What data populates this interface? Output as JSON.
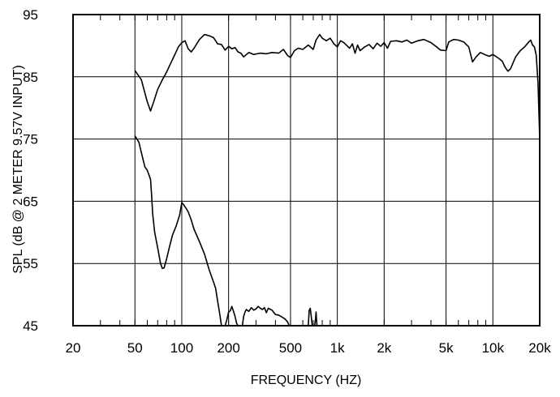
{
  "chart_data": {
    "type": "line",
    "xlabel": "FREQUENCY  (HZ)",
    "ylabel": "SPL (dB @ 2 METER 9.57V  INPUT)",
    "x_scale": "log",
    "xlim": [
      20,
      20000
    ],
    "ylim": [
      45,
      95
    ],
    "grid": true,
    "x_ticks": [
      {
        "value": 20,
        "label": "20"
      },
      {
        "value": 50,
        "label": "50"
      },
      {
        "value": 100,
        "label": "100"
      },
      {
        "value": 200,
        "label": "200"
      },
      {
        "value": 500,
        "label": "500"
      },
      {
        "value": 1000,
        "label": "1k"
      },
      {
        "value": 2000,
        "label": "2k"
      },
      {
        "value": 5000,
        "label": "5k"
      },
      {
        "value": 10000,
        "label": "10k"
      },
      {
        "value": 20000,
        "label": "20k"
      }
    ],
    "y_ticks": [
      {
        "value": 45,
        "label": "45"
      },
      {
        "value": 55,
        "label": "55"
      },
      {
        "value": 65,
        "label": "65"
      },
      {
        "value": 75,
        "label": "75"
      },
      {
        "value": 85,
        "label": "85"
      },
      {
        "value": 95,
        "label": "95"
      }
    ],
    "series": [
      {
        "points": [
          [
            50,
            86
          ],
          [
            55,
            84.5
          ],
          [
            60,
            81
          ],
          [
            63,
            79.5
          ],
          [
            66,
            81
          ],
          [
            70,
            83
          ],
          [
            75,
            84.5
          ],
          [
            80,
            85.8
          ],
          [
            85,
            87.2
          ],
          [
            90,
            88.5
          ],
          [
            95,
            89.8
          ],
          [
            100,
            90.5
          ],
          [
            105,
            90.8
          ],
          [
            110,
            89.5
          ],
          [
            115,
            89
          ],
          [
            120,
            89.6
          ],
          [
            130,
            91
          ],
          [
            140,
            91.8
          ],
          [
            150,
            91.6
          ],
          [
            160,
            91.3
          ],
          [
            170,
            90.3
          ],
          [
            180,
            90.2
          ],
          [
            190,
            89.3
          ],
          [
            200,
            89.9
          ],
          [
            210,
            89.5
          ],
          [
            220,
            89.7
          ],
          [
            230,
            89
          ],
          [
            240,
            88.8
          ],
          [
            250,
            88.2
          ],
          [
            270,
            88.9
          ],
          [
            290,
            88.6
          ],
          [
            320,
            88.8
          ],
          [
            350,
            88.7
          ],
          [
            380,
            88.9
          ],
          [
            420,
            88.8
          ],
          [
            450,
            89.4
          ],
          [
            480,
            88.4
          ],
          [
            500,
            88.1
          ],
          [
            530,
            89.2
          ],
          [
            560,
            89.6
          ],
          [
            600,
            89.4
          ],
          [
            650,
            90.1
          ],
          [
            700,
            89.4
          ],
          [
            730,
            90.9
          ],
          [
            770,
            91.8
          ],
          [
            800,
            91.2
          ],
          [
            850,
            90.8
          ],
          [
            900,
            91.2
          ],
          [
            950,
            90.3
          ],
          [
            1000,
            89.8
          ],
          [
            1050,
            90.8
          ],
          [
            1100,
            90.5
          ],
          [
            1200,
            89.6
          ],
          [
            1250,
            90.3
          ],
          [
            1300,
            88.8
          ],
          [
            1350,
            90.1
          ],
          [
            1400,
            89.2
          ],
          [
            1500,
            89.8
          ],
          [
            1600,
            90.2
          ],
          [
            1700,
            89.5
          ],
          [
            1800,
            90.4
          ],
          [
            1900,
            89.9
          ],
          [
            2000,
            90.5
          ],
          [
            2100,
            89.6
          ],
          [
            2200,
            90.7
          ],
          [
            2400,
            90.8
          ],
          [
            2600,
            90.6
          ],
          [
            2800,
            90.9
          ],
          [
            3000,
            90.4
          ],
          [
            3300,
            90.8
          ],
          [
            3600,
            91
          ],
          [
            4000,
            90.5
          ],
          [
            4300,
            89.9
          ],
          [
            4600,
            89.3
          ],
          [
            5000,
            89.2
          ],
          [
            5200,
            90.6
          ],
          [
            5600,
            91
          ],
          [
            6000,
            90.9
          ],
          [
            6500,
            90.6
          ],
          [
            7000,
            89.8
          ],
          [
            7400,
            87.4
          ],
          [
            7800,
            88.2
          ],
          [
            8300,
            88.9
          ],
          [
            9000,
            88.5
          ],
          [
            9500,
            88.3
          ],
          [
            10000,
            88.6
          ],
          [
            11000,
            87.9
          ],
          [
            11500,
            87.5
          ],
          [
            12000,
            86.5
          ],
          [
            12500,
            85.9
          ],
          [
            13000,
            86.3
          ],
          [
            14000,
            88.2
          ],
          [
            15000,
            89.2
          ],
          [
            16000,
            89.8
          ],
          [
            17000,
            90.6
          ],
          [
            17500,
            90.9
          ],
          [
            18000,
            90.1
          ],
          [
            18500,
            89.8
          ],
          [
            19000,
            88.5
          ],
          [
            19500,
            84
          ],
          [
            20000,
            75
          ]
        ]
      },
      {
        "points": [
          [
            50,
            75.5
          ],
          [
            53,
            74.5
          ],
          [
            56,
            72
          ],
          [
            58,
            70.5
          ],
          [
            60,
            70
          ],
          [
            62,
            69
          ],
          [
            63,
            68.5
          ],
          [
            64,
            66
          ],
          [
            65,
            63
          ],
          [
            67,
            60
          ],
          [
            70,
            57.5
          ],
          [
            73,
            55
          ],
          [
            75,
            54.2
          ],
          [
            77,
            54.3
          ],
          [
            80,
            55.8
          ],
          [
            83,
            57.5
          ],
          [
            87,
            59.5
          ],
          [
            92,
            61
          ],
          [
            97,
            62.8
          ],
          [
            100,
            64.8
          ],
          [
            103,
            64.4
          ],
          [
            107,
            63.8
          ],
          [
            110,
            63.3
          ],
          [
            115,
            62
          ],
          [
            120,
            60.5
          ],
          [
            130,
            58.5
          ],
          [
            140,
            56.5
          ],
          [
            150,
            54
          ],
          [
            160,
            52
          ],
          [
            165,
            51
          ],
          [
            170,
            49
          ],
          [
            175,
            47
          ],
          [
            180,
            45
          ]
        ]
      },
      {
        "points": [
          [
            190,
            45
          ],
          [
            195,
            46
          ],
          [
            200,
            47.2
          ],
          [
            205,
            47.4
          ],
          [
            210,
            48.1
          ],
          [
            215,
            47.3
          ],
          [
            220,
            46.5
          ],
          [
            225,
            45.4
          ],
          [
            230,
            45
          ]
        ]
      },
      {
        "points": [
          [
            245,
            45
          ],
          [
            250,
            46.5
          ],
          [
            255,
            47.2
          ],
          [
            260,
            47.6
          ],
          [
            270,
            47.3
          ],
          [
            280,
            47.9
          ],
          [
            290,
            47.5
          ],
          [
            300,
            47.7
          ],
          [
            310,
            48.1
          ],
          [
            320,
            47.8
          ],
          [
            330,
            47.6
          ],
          [
            340,
            47.9
          ],
          [
            350,
            47.1
          ],
          [
            360,
            47.8
          ],
          [
            380,
            47.5
          ],
          [
            400,
            46.8
          ],
          [
            420,
            46.7
          ],
          [
            440,
            46.4
          ],
          [
            460,
            46.1
          ],
          [
            480,
            45.6
          ],
          [
            490,
            45
          ]
        ]
      },
      {
        "points": [
          [
            650,
            45
          ],
          [
            660,
            47.5
          ],
          [
            670,
            47.8
          ],
          [
            680,
            46.5
          ],
          [
            690,
            45
          ]
        ]
      },
      {
        "points": [
          [
            715,
            45
          ],
          [
            725,
            46.2
          ],
          [
            730,
            47.2
          ],
          [
            735,
            46
          ],
          [
            740,
            45
          ]
        ]
      }
    ]
  }
}
